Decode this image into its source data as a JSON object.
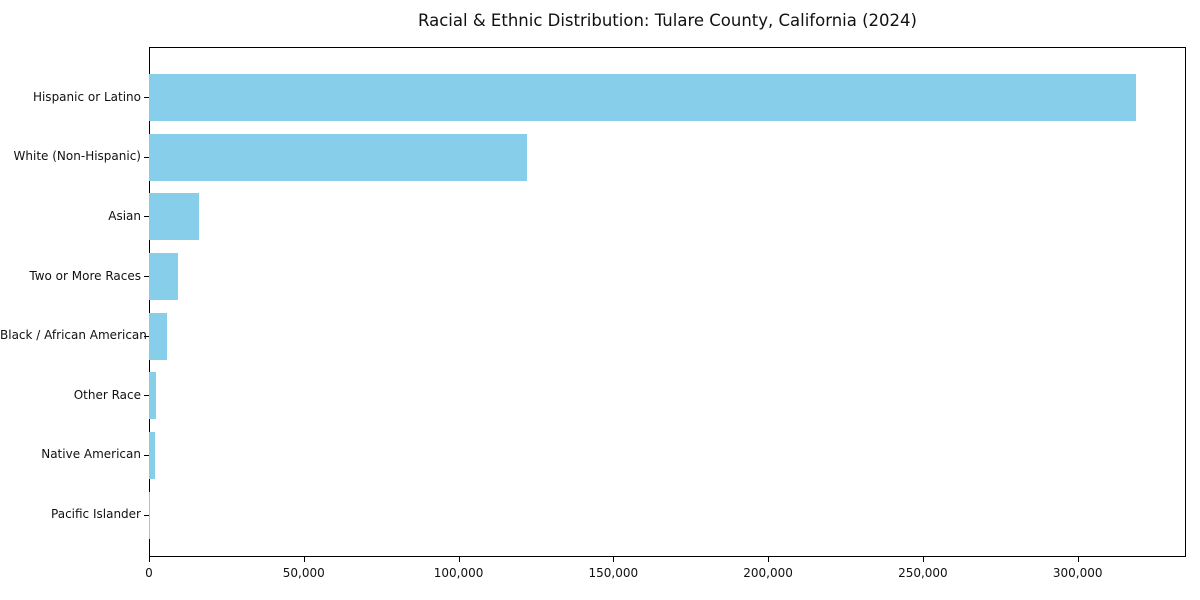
{
  "chart_data": {
    "type": "bar",
    "orientation": "horizontal",
    "title": "Racial & Ethnic Distribution: Tulare County, California (2024)",
    "categories": [
      "Hispanic or Latino",
      "White (Non-Hispanic)",
      "Asian",
      "Two or More Races",
      "Black / African American",
      "Other Race",
      "Native American",
      "Pacific Islander"
    ],
    "values": [
      319000,
      122000,
      16300,
      9500,
      5900,
      2300,
      2000,
      400
    ],
    "xlabel": "",
    "ylabel": "",
    "xlim": [
      0,
      335000
    ],
    "xticks": [
      0,
      50000,
      100000,
      150000,
      200000,
      250000,
      300000
    ],
    "xtick_labels": [
      "0",
      "50,000",
      "100,000",
      "150,000",
      "200,000",
      "250,000",
      "300,000"
    ],
    "bar_color": "#87CEEB",
    "axis_color": "#000000",
    "background_color": "#ffffff",
    "grid": false,
    "legend": null
  }
}
